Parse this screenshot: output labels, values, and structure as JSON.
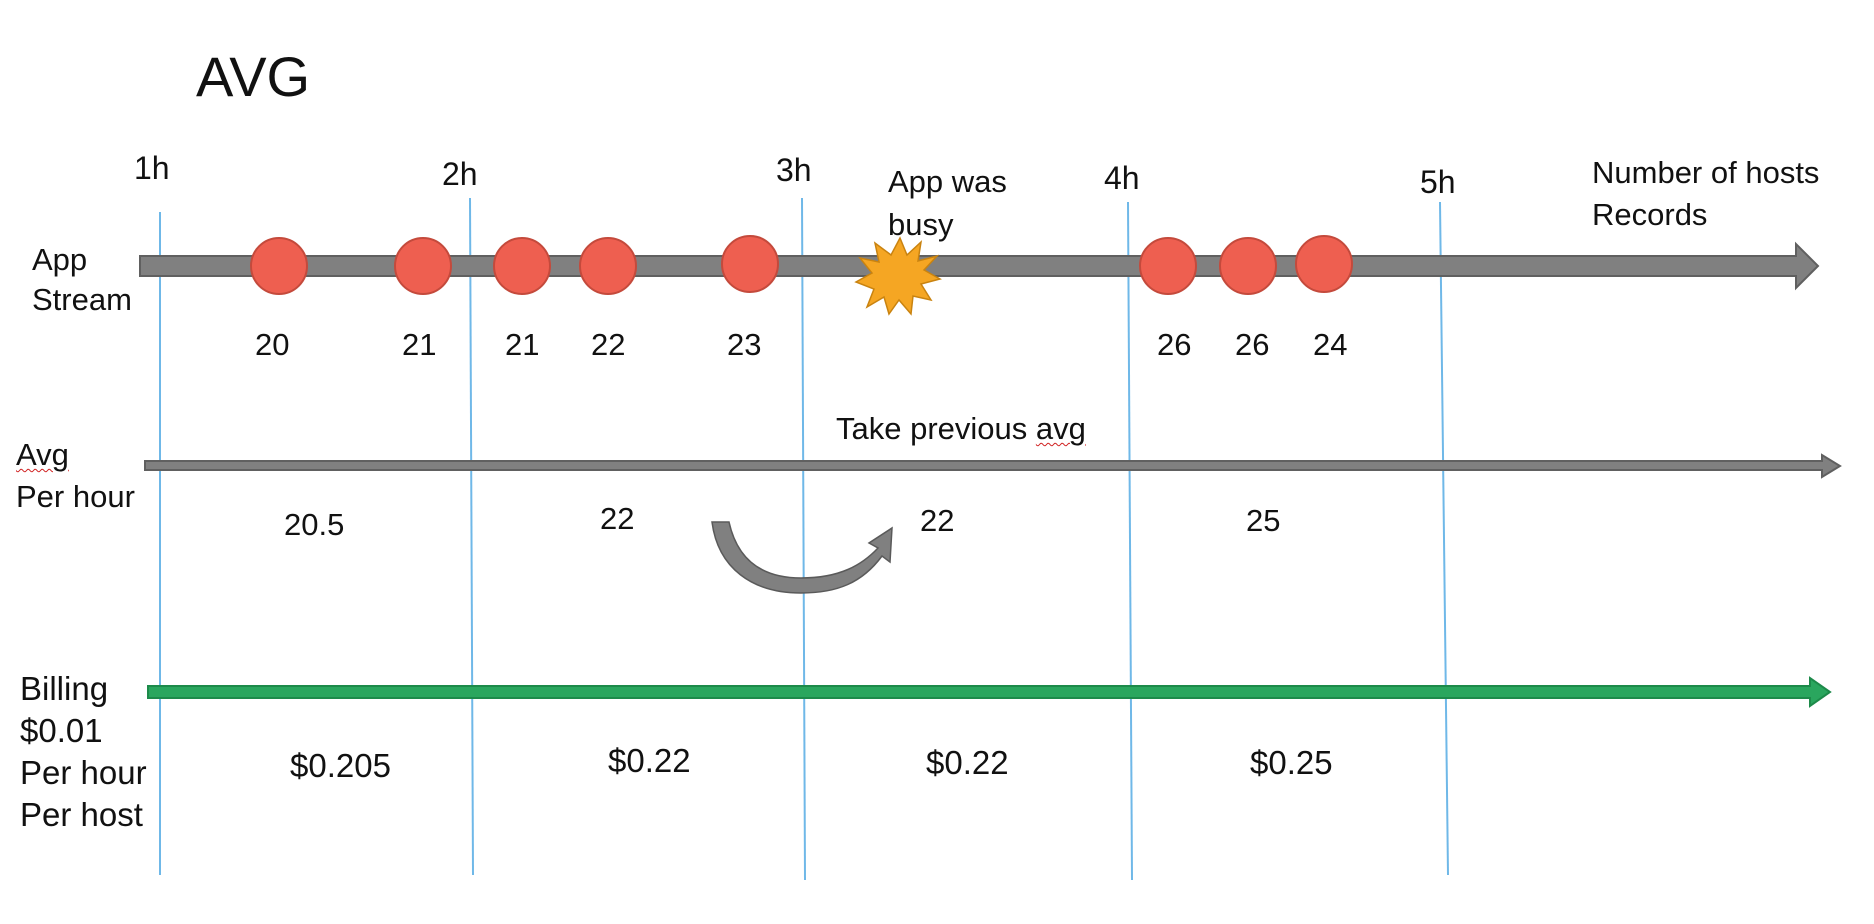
{
  "title": "AVG",
  "hours": [
    "1h",
    "2h",
    "3h",
    "4h",
    "5h"
  ],
  "right_label": {
    "line1": "Number of hosts",
    "line2": "Records"
  },
  "busy_note": {
    "line1": "App was",
    "line2": "busy"
  },
  "rows": {
    "app_stream": {
      "label": "App\nStream",
      "records": [
        "20",
        "21",
        "21",
        "22",
        "23",
        "26",
        "26",
        "24"
      ]
    },
    "avg": {
      "label_word": "Avg",
      "label_rest": "Per hour",
      "values": [
        "20.5",
        "22",
        "22",
        "25"
      ],
      "note_prefix": "Take previous ",
      "note_word": "avg"
    },
    "billing": {
      "label": "Billing\n$0.01\nPer hour\nPer host",
      "values": [
        "$0.205",
        "$0.22",
        "$0.22",
        "$0.25"
      ]
    }
  },
  "colors": {
    "timeline_arrow": "#808080",
    "billing_arrow": "#2aa65e",
    "record_dot": "#ee5f50",
    "busy_star": "#f5a623",
    "hour_line": "#6fb8e8"
  },
  "icons": {
    "busy": "burst-star-icon",
    "carry_over": "curved-arrow-icon"
  }
}
